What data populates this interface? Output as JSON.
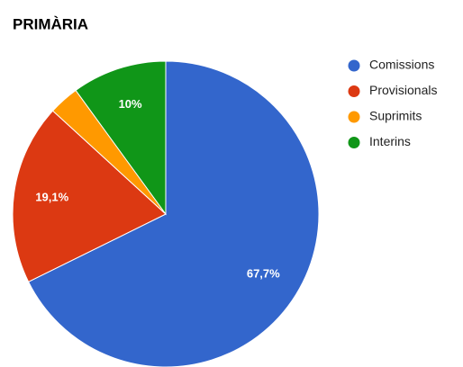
{
  "chart_data": {
    "type": "pie",
    "title": "PRIMÀRIA",
    "categories": [
      "Comissions",
      "Provisionals",
      "Suprimits",
      "Interins"
    ],
    "values": [
      67.7,
      19.1,
      3.2,
      10
    ],
    "value_labels": [
      "67,7%",
      "19,1%",
      null,
      "10%"
    ],
    "colors": [
      "#3366cc",
      "#dc3912",
      "#ff9900",
      "#109618"
    ],
    "legend": "right"
  }
}
